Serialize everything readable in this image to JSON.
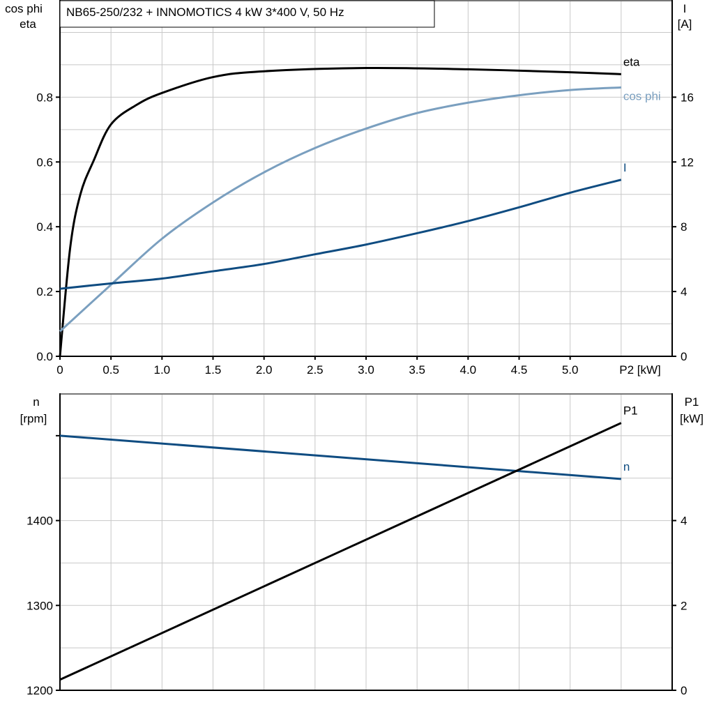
{
  "title": "NB65-250/232 + INNOMOTICS   4 kW   3*400 V, 50 Hz",
  "colors": {
    "eta": "#000000",
    "cos_phi": "#7a9fbf",
    "I": "#0f4c81",
    "n": "#0f4c81",
    "P1": "#000000",
    "grid": "#c8c8c8"
  },
  "chart_data": [
    {
      "type": "line",
      "xlabel": "P2 [kW]",
      "ylabel_left": [
        "cos phi",
        "eta"
      ],
      "ylabel_right": [
        "I",
        "[A]"
      ],
      "xlim": [
        0,
        6
      ],
      "ylim_left": [
        0,
        1.1
      ],
      "ylim_right": [
        0,
        22
      ],
      "grid": true,
      "x_ticks": [
        "0",
        "0.5",
        "1.0",
        "1.5",
        "2.0",
        "2.5",
        "3.0",
        "3.5",
        "4.0",
        "4.5",
        "5.0"
      ],
      "y_ticks_left": [
        "0.0",
        "0.2",
        "0.4",
        "0.6",
        "0.8"
      ],
      "y_ticks_right": [
        "0",
        "4",
        "8",
        "12",
        "16"
      ],
      "series": [
        {
          "name": "eta",
          "axis": "left",
          "x": [
            0,
            0.1,
            0.2,
            0.33,
            0.5,
            0.75,
            1.0,
            1.5,
            2.0,
            3.0,
            4.0,
            5.0,
            5.5
          ],
          "y": [
            0,
            0.335,
            0.5,
            0.604,
            0.716,
            0.776,
            0.813,
            0.862,
            0.88,
            0.89,
            0.886,
            0.877,
            0.871
          ]
        },
        {
          "name": "cos phi",
          "axis": "left",
          "x": [
            0,
            0.5,
            1.0,
            1.5,
            2.0,
            2.5,
            3.0,
            3.5,
            4.0,
            4.5,
            5.0,
            5.5
          ],
          "y": [
            0.077,
            0.221,
            0.363,
            0.475,
            0.568,
            0.643,
            0.703,
            0.751,
            0.783,
            0.806,
            0.822,
            0.83
          ]
        },
        {
          "name": "I",
          "axis": "right",
          "x": [
            0,
            0.5,
            1.0,
            1.5,
            2.0,
            2.5,
            3.0,
            3.5,
            4.0,
            4.5,
            5.0,
            5.5
          ],
          "y": [
            4.17,
            4.5,
            4.8,
            5.25,
            5.7,
            6.3,
            6.9,
            7.6,
            8.35,
            9.2,
            10.1,
            10.9
          ]
        }
      ]
    },
    {
      "type": "line",
      "ylabel_left": [
        "n",
        "[rpm]"
      ],
      "ylabel_right": [
        "P1",
        "[kW]"
      ],
      "xlim": [
        0,
        6
      ],
      "ylim_left": [
        1200,
        1550
      ],
      "ylim_right": [
        0,
        7
      ],
      "grid": true,
      "y_ticks_left": [
        "1200",
        "1300",
        "1400"
      ],
      "y_ticks_right": [
        "0",
        "2",
        "4"
      ],
      "series": [
        {
          "name": "n",
          "axis": "left",
          "x": [
            0,
            5.5
          ],
          "y": [
            1500,
            1449
          ]
        },
        {
          "name": "P1",
          "axis": "right",
          "x": [
            0,
            5.5
          ],
          "y": [
            0.25,
            6.3
          ]
        }
      ]
    }
  ]
}
